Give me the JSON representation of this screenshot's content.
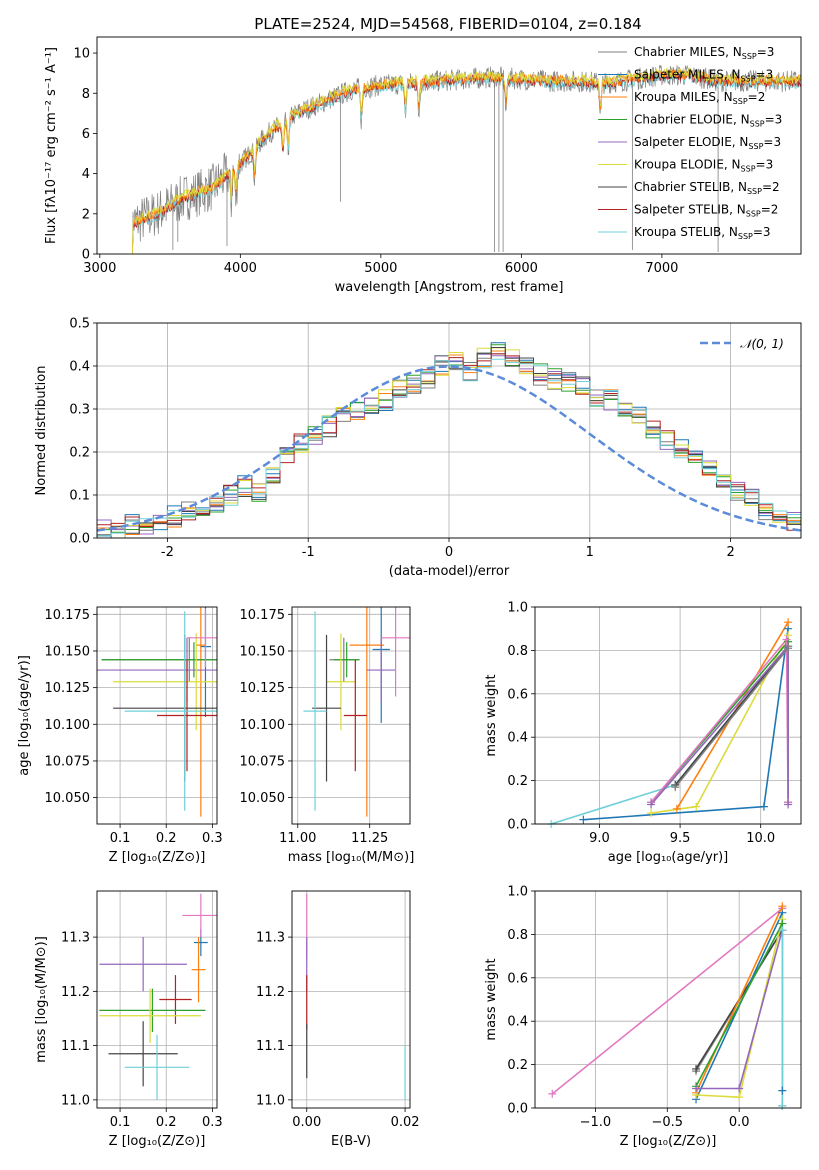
{
  "title": "PLATE=2524, MJD=54568, FIBERID=0104, z=0.184",
  "colors": {
    "Chabrier MILES": "#7f7f7f",
    "Salpeter MILES": "#1f77b4",
    "Kroupa MILES": "#ff7f0e",
    "Chabrier ELODIE": "#2ca02c",
    "Salpeter ELODIE": "#9467bd",
    "Kroupa ELODIE": "#dbdb3d",
    "Chabrier STELIB": "#444444",
    "Salpeter STELIB": "#b22222",
    "Kroupa STELIB": "#6fd0d8",
    "pink": "#e377c2",
    "normal": "#5b8bd9"
  },
  "chart_data": [
    {
      "type": "line",
      "title": "PLATE=2524, MJD=54568, FIBERID=0104, z=0.184",
      "xlabel": "wavelength [Angstrom, rest frame]",
      "ylabel": "Flux [fλ10⁻¹⁷ erg cm⁻² s⁻¹ A⁻¹]",
      "xlim": [
        2980,
        7990
      ],
      "ylim": [
        0,
        10.8
      ],
      "xticks": [
        3000,
        4000,
        5000,
        6000,
        7000
      ],
      "yticks": [
        0,
        2,
        4,
        6,
        8,
        10
      ],
      "legend_position": "top-right",
      "legend": [
        "Chabrier MILES, N_SSP=3",
        "Salpeter MILES, N_SSP=3",
        "Kroupa MILES, N_SSP=2",
        "Chabrier ELODIE, N_SSP=3",
        "Salpeter ELODIE, N_SSP=3",
        "Kroupa ELODIE, N_SSP=3",
        "Chabrier STELIB, N_SSP=2",
        "Salpeter STELIB, N_SSP=2",
        "Kroupa STELIB, N_SSP=3"
      ],
      "continuum": {
        "x": [
          3220,
          3400,
          3600,
          3800,
          4000,
          4200,
          4400,
          4600,
          4800,
          5000,
          5200,
          5400,
          5600,
          5800,
          6000,
          6200,
          6400,
          6600,
          6800,
          7000,
          7200,
          7400
        ],
        "y": [
          1.5,
          2.0,
          2.8,
          3.3,
          4.5,
          6.0,
          7.0,
          7.6,
          8.2,
          8.4,
          8.5,
          8.6,
          8.7,
          8.8,
          8.7,
          8.6,
          8.6,
          8.5,
          8.7,
          8.9,
          8.9,
          8.6
        ]
      }
    },
    {
      "type": "step",
      "xlabel": "(data-model)/error",
      "ylabel": "Normed distribution",
      "xlim": [
        -2.5,
        2.5
      ],
      "ylim": [
        0,
        0.5
      ],
      "xticks": [
        -2,
        -1,
        0,
        1,
        2
      ],
      "yticks": [
        0.0,
        0.1,
        0.2,
        0.3,
        0.4,
        0.5
      ],
      "legend": [
        "𝒩(0, 1)"
      ],
      "legend_position": "top-right",
      "bin_width": 0.1,
      "bins_start": -2.5,
      "histogram_mean": [
        0.02,
        0.02,
        0.03,
        0.03,
        0.04,
        0.05,
        0.06,
        0.06,
        0.08,
        0.1,
        0.12,
        0.11,
        0.14,
        0.2,
        0.22,
        0.24,
        0.26,
        0.28,
        0.3,
        0.31,
        0.32,
        0.35,
        0.36,
        0.37,
        0.4,
        0.41,
        0.39,
        0.42,
        0.43,
        0.42,
        0.4,
        0.38,
        0.37,
        0.36,
        0.35,
        0.33,
        0.32,
        0.3,
        0.28,
        0.25,
        0.23,
        0.21,
        0.19,
        0.16,
        0.13,
        0.11,
        0.09,
        0.06,
        0.05,
        0.04
      ]
    },
    {
      "type": "errorbar",
      "xlabel": "Z [log₁₀(Z/Z⊙)]",
      "ylabel": "age  [log₁₀(age/yr)]",
      "xlim": [
        0.05,
        0.31
      ],
      "ylim": [
        10.032,
        10.18
      ],
      "xticks": [
        0.1,
        0.2,
        0.3
      ],
      "yticks": [
        10.05,
        10.075,
        10.1,
        10.125,
        10.15,
        10.175
      ],
      "points": [
        {
          "x": 0.25,
          "y": 10.144,
          "xerr": 0.19,
          "yerr": 0.015,
          "c": "Chabrier MILES"
        },
        {
          "x": 0.285,
          "y": 10.153,
          "xerr": 0.012,
          "yerr": 0.048,
          "c": "Salpeter MILES"
        },
        {
          "x": 0.275,
          "y": 10.154,
          "xerr": 0.01,
          "yerr": 0.117,
          "c": "Kroupa MILES"
        },
        {
          "x": 0.26,
          "y": 10.144,
          "xerr": 0.2,
          "yerr": 0.012,
          "c": "Chabrier ELODIE"
        },
        {
          "x": 0.245,
          "y": 10.137,
          "xerr": 0.195,
          "yerr": 0.022,
          "c": "Salpeter ELODIE"
        },
        {
          "x": 0.265,
          "y": 10.129,
          "xerr": 0.18,
          "yerr": 0.033,
          "c": "Kroupa ELODIE"
        },
        {
          "x": 0.24,
          "y": 10.111,
          "xerr": 0.155,
          "yerr": 0.05,
          "c": "Chabrier STELIB"
        },
        {
          "x": 0.245,
          "y": 10.106,
          "xerr": 0.065,
          "yerr": 0.038,
          "c": "Salpeter STELIB"
        },
        {
          "x": 0.24,
          "y": 10.109,
          "xerr": 0.13,
          "yerr": 0.068,
          "c": "Kroupa STELIB"
        },
        {
          "x": 0.285,
          "y": 10.159,
          "xerr": 0.04,
          "yerr": 0.02,
          "c": "pink"
        }
      ]
    },
    {
      "type": "errorbar",
      "xlabel": "mass [log₁₀(M/M⊙)]",
      "xlim": [
        10.98,
        11.39
      ],
      "ylim": [
        10.032,
        10.18
      ],
      "xticks": [
        11.0,
        11.25
      ],
      "yticks": [
        10.05,
        10.075,
        10.1,
        10.125,
        10.15,
        10.175
      ],
      "points": [
        {
          "x": 11.16,
          "y": 10.144,
          "xerr": 0.05,
          "yerr": 0.015,
          "c": "Chabrier MILES"
        },
        {
          "x": 11.29,
          "y": 10.151,
          "xerr": 0.03,
          "yerr": 0.05,
          "c": "Salpeter MILES"
        },
        {
          "x": 11.24,
          "y": 10.154,
          "xerr": 0.06,
          "yerr": 0.117,
          "c": "Kroupa MILES"
        },
        {
          "x": 11.17,
          "y": 10.144,
          "xerr": 0.045,
          "yerr": 0.012,
          "c": "Chabrier ELODIE"
        },
        {
          "x": 11.29,
          "y": 10.137,
          "xerr": 0.05,
          "yerr": 0.022,
          "c": "Salpeter ELODIE"
        },
        {
          "x": 11.15,
          "y": 10.129,
          "xerr": 0.05,
          "yerr": 0.033,
          "c": "Kroupa ELODIE"
        },
        {
          "x": 11.1,
          "y": 10.111,
          "xerr": 0.05,
          "yerr": 0.05,
          "c": "Chabrier STELIB"
        },
        {
          "x": 11.2,
          "y": 10.106,
          "xerr": 0.04,
          "yerr": 0.038,
          "c": "Salpeter STELIB"
        },
        {
          "x": 11.06,
          "y": 10.109,
          "xerr": 0.04,
          "yerr": 0.068,
          "c": "Kroupa STELIB"
        },
        {
          "x": 11.34,
          "y": 10.159,
          "xerr": 0.05,
          "yerr": 0.04,
          "c": "pink"
        }
      ]
    },
    {
      "type": "line",
      "xlabel": "age  [log₁₀(age/yr)]",
      "ylabel": "mass weight",
      "xlim": [
        8.6,
        10.25
      ],
      "ylim": [
        0,
        1
      ],
      "xticks": [
        9.0,
        9.5,
        10.0
      ],
      "yticks": [
        0.0,
        0.2,
        0.4,
        0.6,
        0.8,
        1.0
      ],
      "series": [
        {
          "c": "Kroupa STELIB",
          "x": [
            8.7,
            9.47,
            10.17
          ],
          "y": [
            0.0,
            0.18,
            0.82
          ]
        },
        {
          "c": "Salpeter MILES",
          "x": [
            8.9,
            10.02,
            10.17
          ],
          "y": [
            0.02,
            0.08,
            0.9
          ]
        },
        {
          "c": "Kroupa ELODIE",
          "x": [
            9.32,
            9.6,
            10.17
          ],
          "y": [
            0.05,
            0.08,
            0.87
          ]
        },
        {
          "c": "Kroupa MILES",
          "x": [
            9.48,
            10.17
          ],
          "y": [
            0.07,
            0.93
          ]
        },
        {
          "c": "Chabrier STELIB",
          "x": [
            9.47,
            10.17
          ],
          "y": [
            0.18,
            0.82
          ]
        },
        {
          "c": "Chabrier ELODIE",
          "x": [
            9.32,
            10.17,
            10.17
          ],
          "y": [
            0.1,
            0.84,
            0.1
          ]
        },
        {
          "c": "pink",
          "x": [
            9.32,
            10.16,
            10.17
          ],
          "y": [
            0.1,
            0.85,
            0.1
          ]
        },
        {
          "c": "Salpeter ELODIE",
          "x": [
            9.32,
            10.17,
            10.17
          ],
          "y": [
            0.09,
            0.82,
            0.09
          ]
        },
        {
          "c": "Chabrier MILES",
          "x": [
            9.47,
            10.17,
            10.17
          ],
          "y": [
            0.17,
            0.81,
            0.82
          ]
        }
      ]
    },
    {
      "type": "errorbar",
      "xlabel": "Z [log₁₀(Z/Z⊙)]",
      "ylabel": "mass [log₁₀(M/M⊙)]",
      "xlim": [
        0.05,
        0.31
      ],
      "ylim": [
        10.985,
        11.385
      ],
      "xticks": [
        0.1,
        0.2,
        0.3
      ],
      "yticks": [
        11.0,
        11.1,
        11.2,
        11.3
      ],
      "points": [
        {
          "x": 0.275,
          "y": 11.29,
          "xerr": 0.015,
          "yerr": 0.025,
          "c": "Salpeter MILES"
        },
        {
          "x": 0.27,
          "y": 11.24,
          "xerr": 0.015,
          "yerr": 0.06,
          "c": "Kroupa MILES"
        },
        {
          "x": 0.15,
          "y": 11.25,
          "xerr": 0.095,
          "yerr": 0.05,
          "c": "Salpeter ELODIE"
        },
        {
          "x": 0.22,
          "y": 11.185,
          "xerr": 0.035,
          "yerr": 0.045,
          "c": "Salpeter STELIB"
        },
        {
          "x": 0.17,
          "y": 11.165,
          "xerr": 0.115,
          "yerr": 0.04,
          "c": "Chabrier ELODIE"
        },
        {
          "x": 0.165,
          "y": 11.155,
          "xerr": 0.11,
          "yerr": 0.05,
          "c": "Kroupa ELODIE"
        },
        {
          "x": 0.15,
          "y": 11.085,
          "xerr": 0.075,
          "yerr": 0.06,
          "c": "Chabrier STELIB"
        },
        {
          "x": 0.18,
          "y": 11.06,
          "xerr": 0.07,
          "yerr": 0.06,
          "c": "Kroupa STELIB"
        },
        {
          "x": 0.275,
          "y": 11.34,
          "xerr": 0.04,
          "yerr": 0.04,
          "c": "pink"
        }
      ]
    },
    {
      "type": "errorbar",
      "xlabel": "E(B-V)",
      "xlim": [
        -0.003,
        0.021
      ],
      "ylim": [
        10.985,
        11.385
      ],
      "xticks": [
        0.0,
        0.02
      ],
      "xticklabels": [
        "0.00",
        "0.02"
      ],
      "yticks": [
        11.0,
        11.1,
        11.2,
        11.3
      ],
      "points": [
        {
          "x": 0.0,
          "y": 11.32,
          "yerr": 0.06,
          "c": "pink"
        },
        {
          "x": 0.0,
          "y": 11.25,
          "yerr": 0.05,
          "c": "Salpeter ELODIE"
        },
        {
          "x": 0.0,
          "y": 11.18,
          "yerr": 0.05,
          "c": "Salpeter STELIB"
        },
        {
          "x": 0.0,
          "y": 11.09,
          "yerr": 0.05,
          "c": "Chabrier STELIB"
        },
        {
          "x": 0.02,
          "y": 11.05,
          "yerr": 0.05,
          "c": "Kroupa STELIB"
        }
      ]
    },
    {
      "type": "line",
      "xlabel": "Z [log₁₀(Z/Z⊙)]",
      "ylabel": "mass weight",
      "xlim": [
        -1.42,
        0.43
      ],
      "ylim": [
        0,
        1
      ],
      "xticks": [
        -1.0,
        -0.5,
        0.0
      ],
      "yticks": [
        0.0,
        0.2,
        0.4,
        0.6,
        0.8,
        1.0
      ],
      "series": [
        {
          "c": "pink",
          "x": [
            -1.3,
            0.3
          ],
          "y": [
            0.065,
            0.92
          ]
        },
        {
          "c": "Chabrier MILES",
          "x": [
            -0.3,
            0.3,
            0.3
          ],
          "y": [
            0.17,
            0.82,
            0.01
          ]
        },
        {
          "c": "Chabrier STELIB",
          "x": [
            -0.3,
            0.3
          ],
          "y": [
            0.18,
            0.82
          ]
        },
        {
          "c": "Salpeter MILES",
          "x": [
            -0.3,
            0.3,
            0.3
          ],
          "y": [
            0.04,
            0.9,
            0.08
          ]
        },
        {
          "c": "Kroupa MILES",
          "x": [
            -0.3,
            0.3
          ],
          "y": [
            0.07,
            0.93
          ]
        },
        {
          "c": "Kroupa ELODIE",
          "x": [
            -0.3,
            0.0,
            0.3
          ],
          "y": [
            0.06,
            0.05,
            0.87
          ]
        },
        {
          "c": "Chabrier ELODIE",
          "x": [
            -0.3,
            0.3
          ],
          "y": [
            0.1,
            0.85
          ]
        },
        {
          "c": "Salpeter ELODIE",
          "x": [
            -0.3,
            0.0,
            0.3
          ],
          "y": [
            0.09,
            0.09,
            0.82
          ]
        },
        {
          "c": "Kroupa STELIB",
          "x": [
            0.3,
            0.3
          ],
          "y": [
            0.82,
            0.01
          ]
        }
      ]
    }
  ]
}
